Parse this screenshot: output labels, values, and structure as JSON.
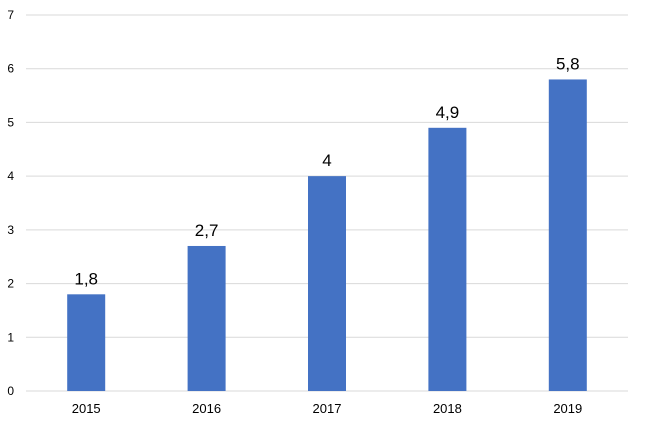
{
  "chart_data": {
    "type": "bar",
    "categories": [
      "2015",
      "2016",
      "2017",
      "2018",
      "2019"
    ],
    "values": [
      1.8,
      2.7,
      4,
      4.9,
      5.8
    ],
    "data_labels": [
      "1,8",
      "2,7",
      "4",
      "4,9",
      "5,8"
    ],
    "ylim": [
      0,
      7
    ],
    "yticks": [
      "0",
      "1",
      "2",
      "3",
      "4",
      "5",
      "6",
      "7"
    ],
    "title": "",
    "xlabel": "",
    "ylabel": "",
    "grid": true,
    "legend": "none",
    "bar_color": "#4472C4",
    "grid_color": "#D9D9D9"
  }
}
